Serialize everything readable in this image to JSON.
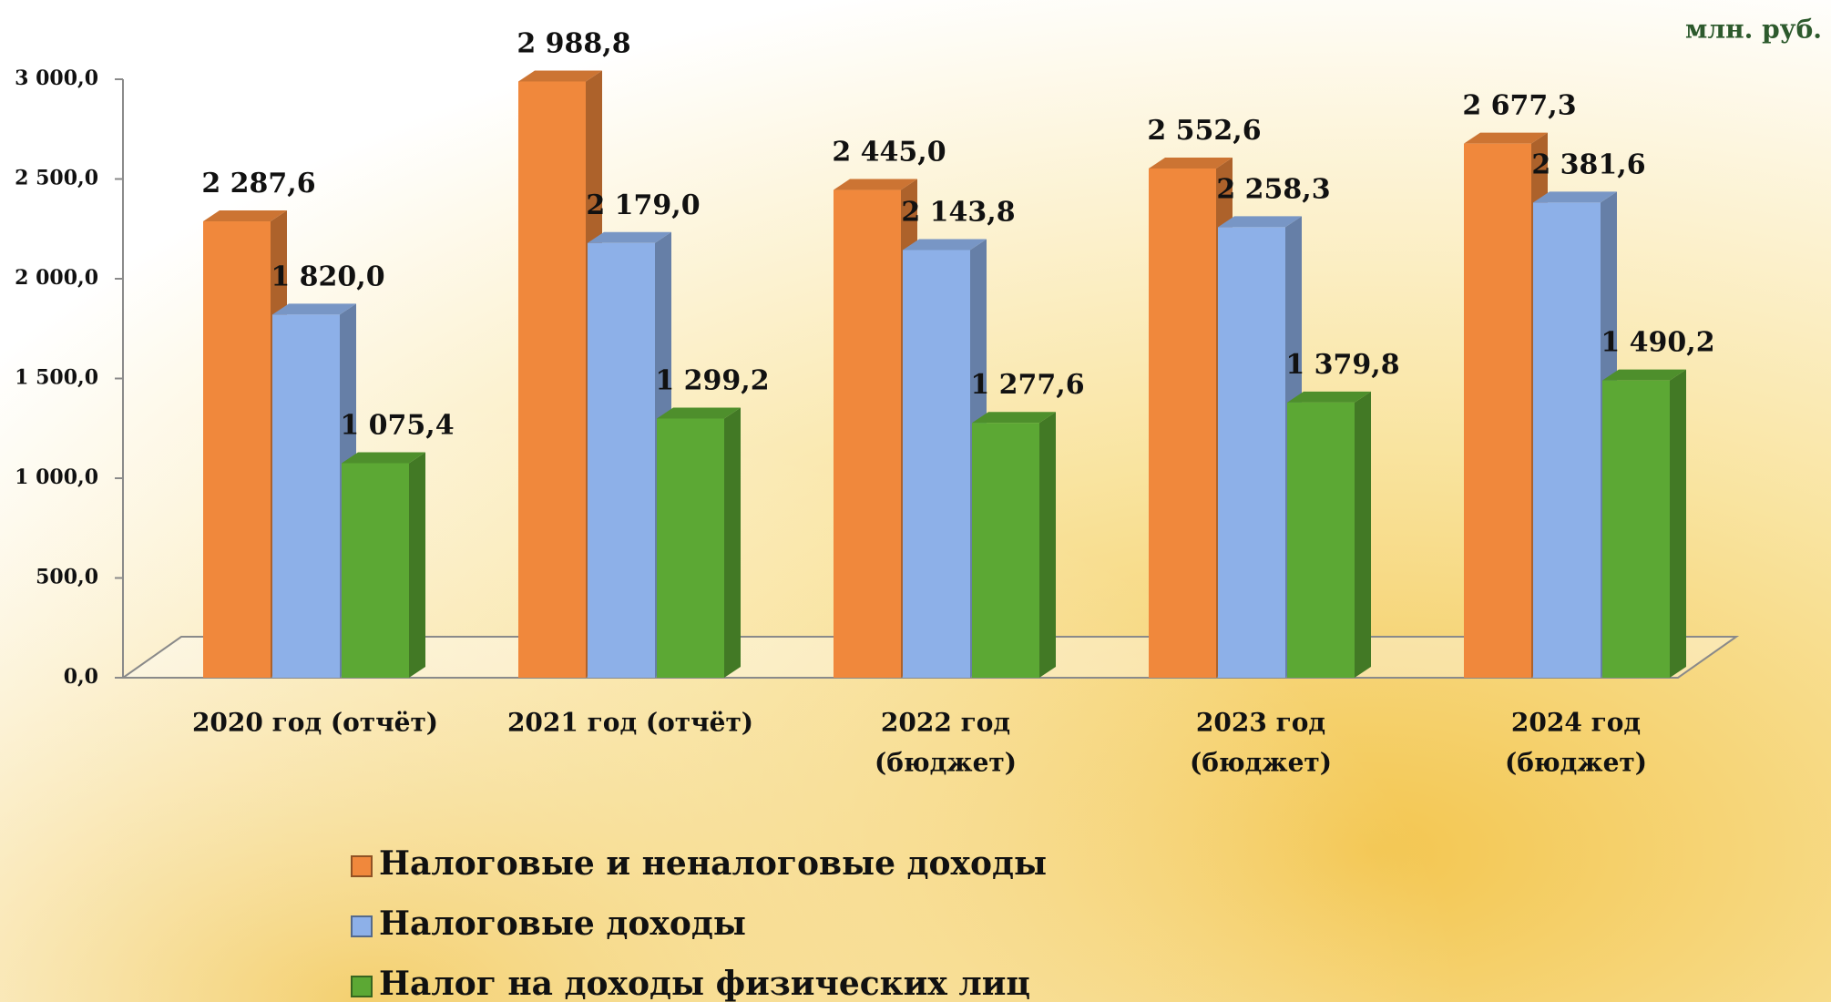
{
  "chart_data": {
    "type": "bar3d",
    "unit": "млн. руб.",
    "categories": [
      [
        "2020 год (отчёт)"
      ],
      [
        "2021 год (отчёт)"
      ],
      [
        "2022 год",
        "(бюджет)"
      ],
      [
        "2023 год",
        "(бюджет)"
      ],
      [
        "2024 год",
        "(бюджет)"
      ]
    ],
    "series": [
      {
        "name": "Налоговые и неналоговые доходы",
        "color": "#f0883c",
        "values": [
          2287.6,
          2988.8,
          2445.0,
          2552.6,
          2677.3
        ],
        "value_labels": [
          "2 287,6",
          "2 988,8",
          "2 445,0",
          "2 552,6",
          "2 677,3"
        ]
      },
      {
        "name": "Налоговые доходы",
        "color": "#8db0e8",
        "values": [
          1820.0,
          2179.0,
          2143.8,
          2258.3,
          2381.6
        ],
        "value_labels": [
          "1 820,0",
          "2 179,0",
          "2 143,8",
          "2 258,3",
          "2 381,6"
        ]
      },
      {
        "name": "Налог на доходы физических лиц",
        "color": "#5ca834",
        "values": [
          1075.4,
          1299.2,
          1277.6,
          1379.8,
          1490.2
        ],
        "value_labels": [
          "1 075,4",
          "1 299,2",
          "1 277,6",
          "1 379,8",
          "1 490,2"
        ]
      }
    ],
    "ylim": [
      0,
      3000
    ],
    "yticks": [
      {
        "value": 0,
        "label": "0,0"
      },
      {
        "value": 500,
        "label": "500,0"
      },
      {
        "value": 1000,
        "label": "1 000,0"
      },
      {
        "value": 1500,
        "label": "1 500,0"
      },
      {
        "value": 2000,
        "label": "2 000,0"
      },
      {
        "value": 2500,
        "label": "2 500,0"
      },
      {
        "value": 3000,
        "label": "3 000,0"
      }
    ],
    "legend": "bottom"
  }
}
